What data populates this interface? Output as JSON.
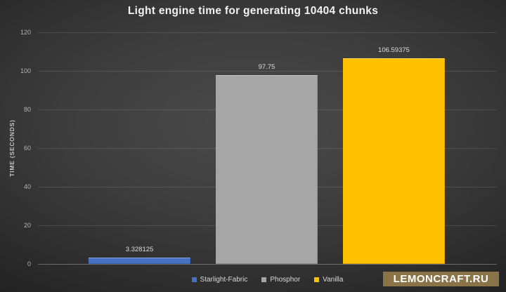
{
  "chart_data": {
    "type": "bar",
    "title": "Light engine time for generating 10404 chunks",
    "categories": [
      "Starlight-Fabric",
      "Phosphor",
      "Vanilla"
    ],
    "values": [
      3.328125,
      97.75,
      106.59375
    ],
    "value_labels": [
      "3.328125",
      "97.75",
      "106.59375"
    ],
    "colors": [
      "#4472c4",
      "#a6a6a6",
      "#ffc000"
    ],
    "xlabel": "",
    "ylabel": "TIME (SECONDS)",
    "ylim": [
      0,
      120
    ],
    "yticks": [
      0,
      20,
      40,
      60,
      80,
      100,
      120
    ],
    "grid": true,
    "legend": {
      "position": "bottom",
      "entries": [
        "Starlight-Fabric",
        "Phosphor",
        "Vanilla"
      ]
    },
    "background_theme": {
      "center": "#4a4a4a",
      "edge": "#1e1e1e",
      "gridline": "rgba(255,255,255,0.12)"
    }
  },
  "watermark": {
    "text": "LEMONCRAFT.RU",
    "bg": "#8a7347",
    "text_color": "#ffffff"
  }
}
